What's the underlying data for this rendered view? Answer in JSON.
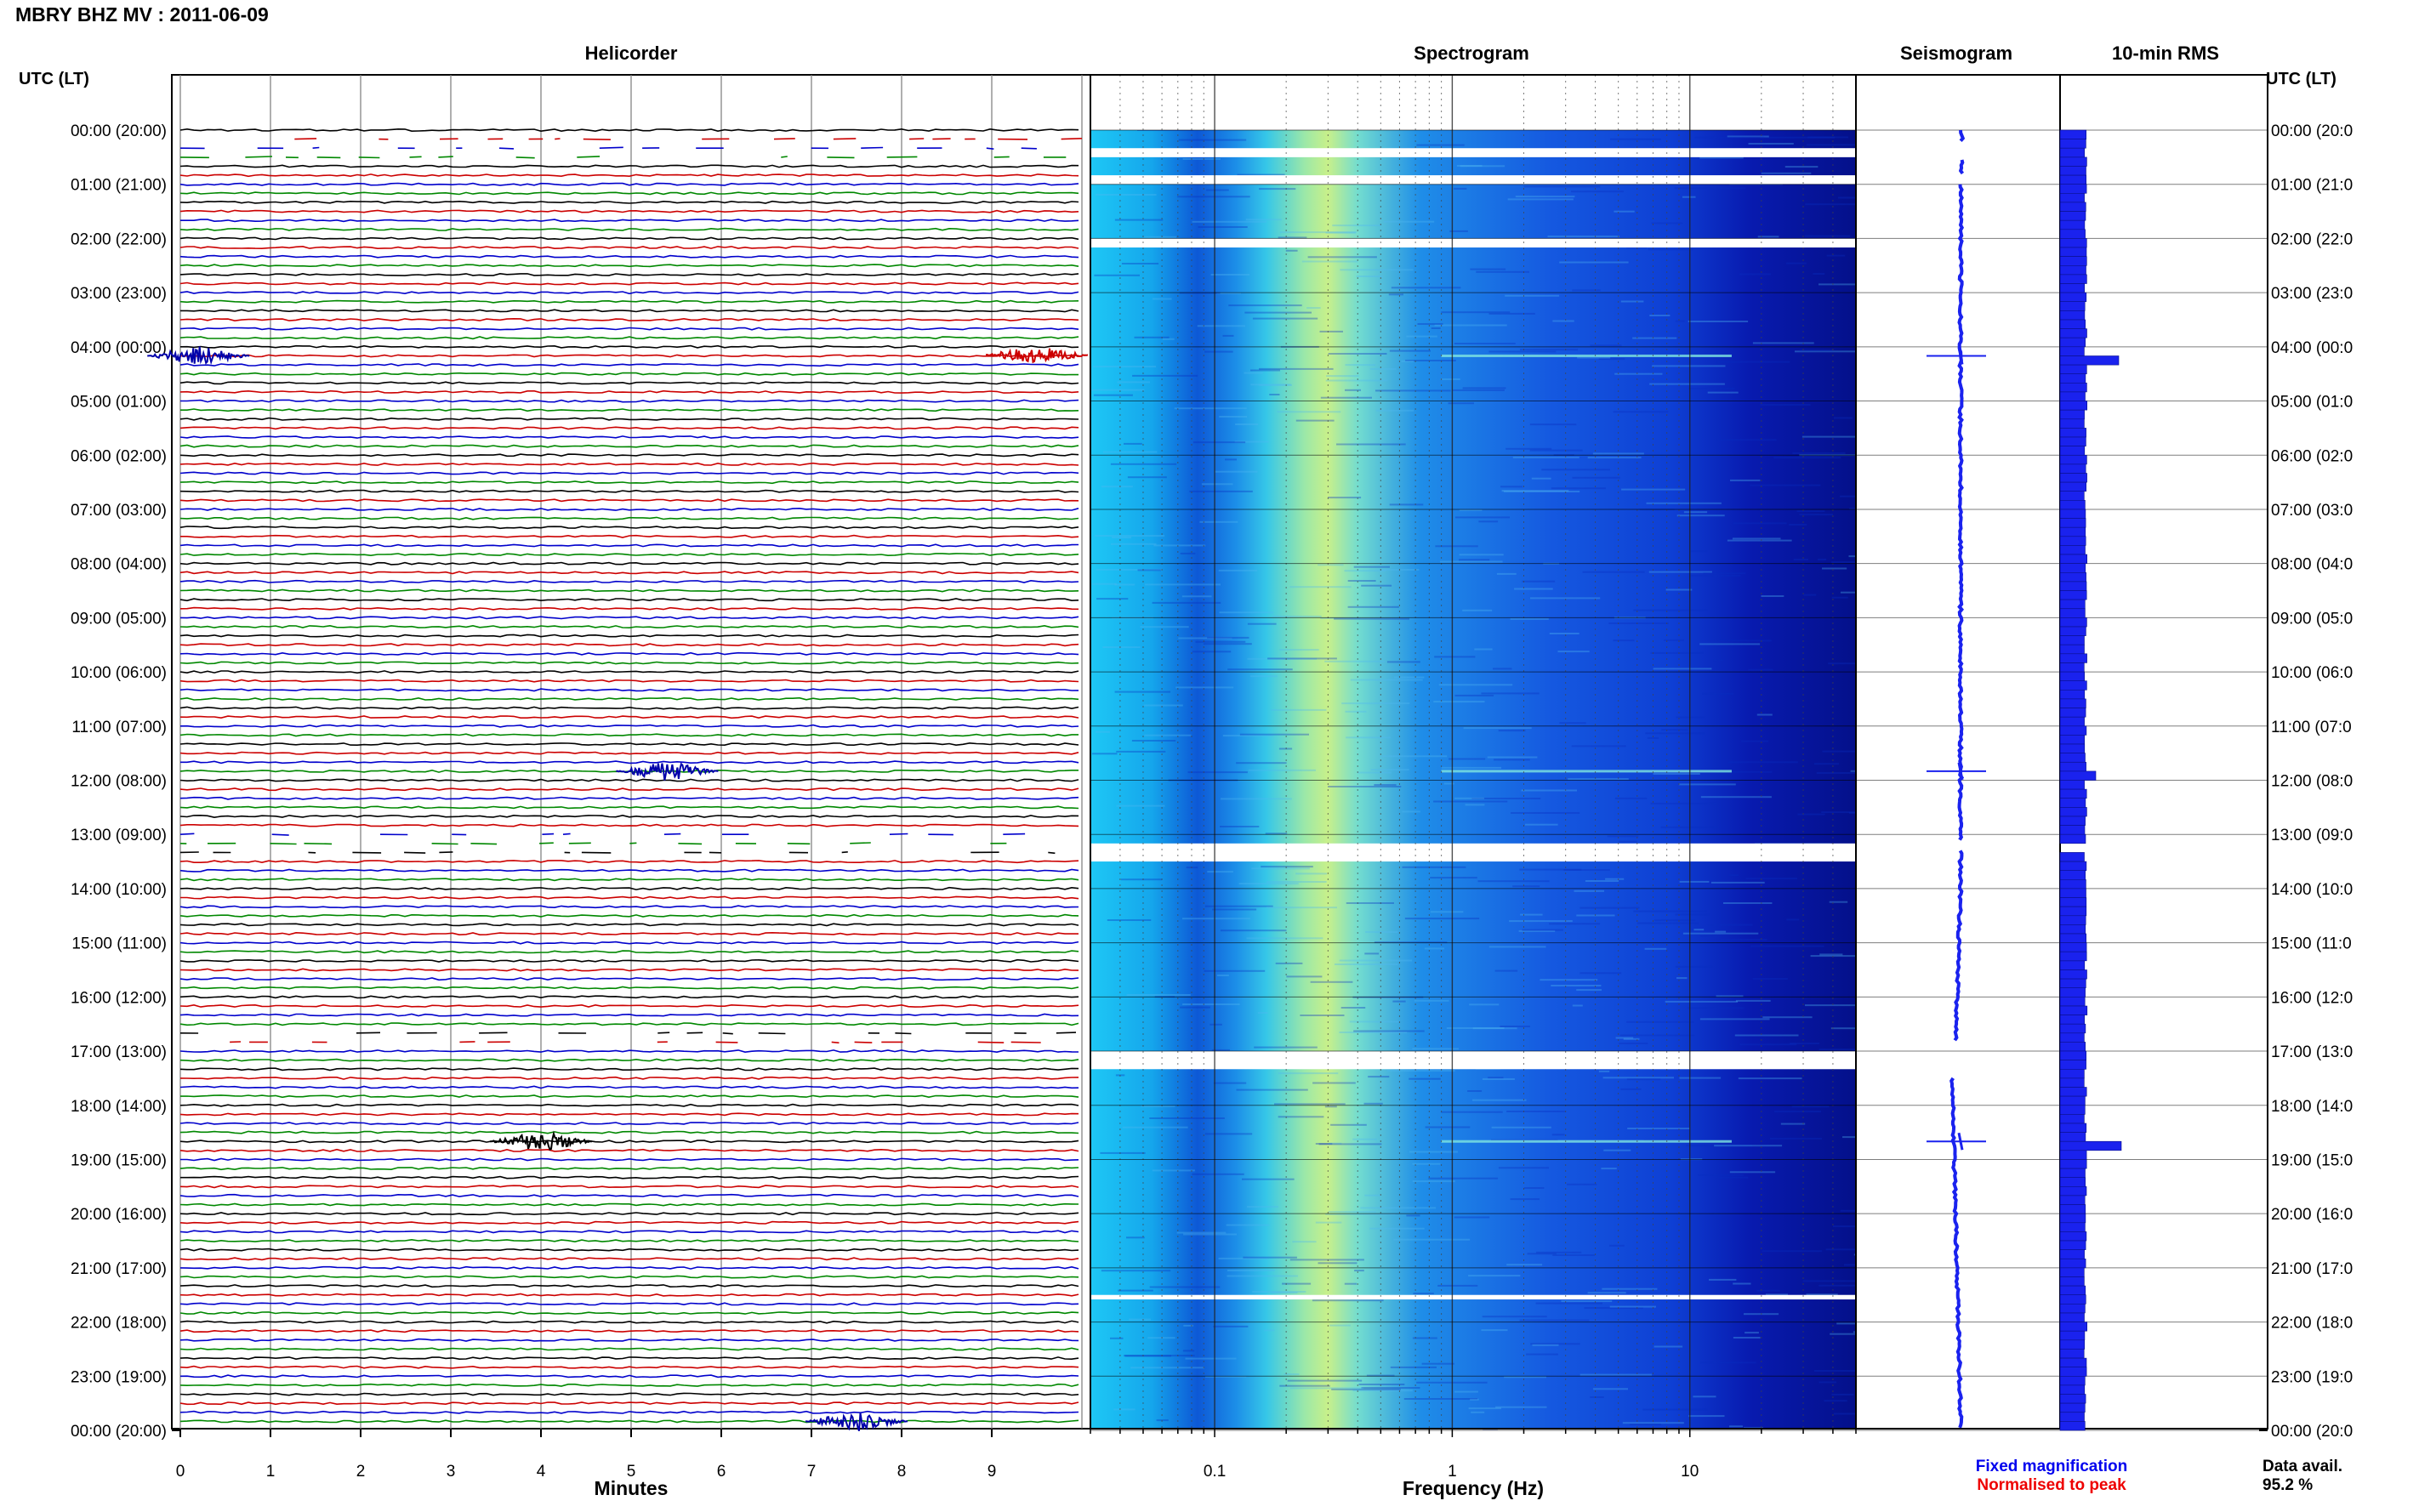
{
  "window_title": "MBRY BHZ MV : 2011-06-09",
  "left_axis_label": "UTC (LT)",
  "right_axis_label": "UTC (LT)",
  "panels": {
    "helicorder": {
      "title": "Helicorder",
      "xlabel": "Minutes",
      "ticks": [
        "0",
        "1",
        "2",
        "3",
        "4",
        "5",
        "6",
        "7",
        "8",
        "9"
      ]
    },
    "spectrogram": {
      "title": "Spectrogram",
      "xlabel": "Frequency (Hz)",
      "ticks": [
        "0.1",
        "1",
        "10"
      ]
    },
    "seismogram": {
      "title": "Seismogram"
    },
    "rms": {
      "title": "10-min RMS"
    }
  },
  "hour_labels_left": [
    "00:00 (20:00)",
    "01:00 (21:00)",
    "02:00 (22:00)",
    "03:00 (23:00)",
    "04:00 (00:00)",
    "05:00 (01:00)",
    "06:00 (02:00)",
    "07:00 (03:00)",
    "08:00 (04:00)",
    "09:00 (05:00)",
    "10:00 (06:00)",
    "11:00 (07:00)",
    "12:00 (08:00)",
    "13:00 (09:00)",
    "14:00 (10:00)",
    "15:00 (11:00)",
    "16:00 (12:00)",
    "17:00 (13:00)",
    "18:00 (14:00)",
    "19:00 (15:00)",
    "20:00 (16:00)",
    "21:00 (17:00)",
    "22:00 (18:00)",
    "23:00 (19:00)",
    "00:00 (20:00)"
  ],
  "hour_labels_right": [
    "00:00 (20:0",
    "01:00 (21:0",
    "02:00 (22:0",
    "03:00 (23:0",
    "04:00 (00:0",
    "05:00 (01:0",
    "06:00 (02:0",
    "07:00 (03:0",
    "08:00 (04:0",
    "09:00 (05:0",
    "10:00 (06:0",
    "11:00 (07:0",
    "12:00 (08:0",
    "13:00 (09:0",
    "14:00 (10:0",
    "15:00 (11:0",
    "16:00 (12:0",
    "17:00 (13:0",
    "18:00 (14:0",
    "19:00 (15:0",
    "20:00 (16:0",
    "21:00 (17:0",
    "22:00 (18:0",
    "23:00 (19:0",
    "00:00 (20:0"
  ],
  "legend": {
    "fixed": "Fixed magnification",
    "normalised": "Normalised to peak"
  },
  "data_avail_label": "Data avail.",
  "data_avail_value": "95.2 %",
  "colors": {
    "fixed": "#0000ee",
    "normalised": "#ee0000",
    "trace_cycle": [
      "#000000",
      "#cc0000",
      "#0000cc",
      "#008800"
    ]
  },
  "chart_data": [
    {
      "type": "line",
      "title": "Helicorder",
      "xlabel": "Minutes",
      "xlim": [
        0,
        10
      ],
      "rows_per_hour": 6,
      "hours": 24,
      "events": [
        {
          "time_utc": "04:09",
          "minute": 9.5,
          "color": "red"
        },
        {
          "time_utc": "04:10",
          "minute": 0.2,
          "color": "blue"
        },
        {
          "time_utc": "11:50",
          "minute": 5.4,
          "color": "blue"
        },
        {
          "time_utc": "18:40",
          "minute": 4.0,
          "color": "black"
        },
        {
          "time_utc": "23:50",
          "minute": 7.5,
          "color": "blue"
        }
      ],
      "gaps_utc": [
        [
          "00:10",
          "00:40"
        ],
        [
          "13:00",
          "13:30"
        ],
        [
          "16:40",
          "17:00"
        ]
      ]
    },
    {
      "type": "heatmap",
      "title": "Spectrogram",
      "xlabel": "Frequency (Hz)",
      "x_scale": "log",
      "xlim": [
        0.03,
        50
      ],
      "peak_frequency_hz": 0.3,
      "gaps_utc": [
        [
          "00:20",
          "00:30"
        ],
        [
          "00:50",
          "01:00"
        ],
        [
          "02:00",
          "02:10"
        ],
        [
          "13:10",
          "13:30"
        ],
        [
          "17:00",
          "17:20"
        ],
        [
          "21:30",
          "21:35"
        ]
      ]
    },
    {
      "type": "line",
      "title": "Seismogram",
      "spikes_utc": [
        "04:10",
        "11:50",
        "18:40"
      ]
    },
    {
      "type": "bar",
      "title": "10-min RMS",
      "orientation": "horizontal",
      "baseline_relative": 1.0,
      "peaks": [
        {
          "time_utc": "04:10",
          "relative": 2.3
        },
        {
          "time_utc": "11:50",
          "relative": 1.4
        },
        {
          "time_utc": "18:40",
          "relative": 2.4
        }
      ],
      "gaps_utc": [
        [
          "13:10",
          "13:20"
        ]
      ]
    }
  ]
}
